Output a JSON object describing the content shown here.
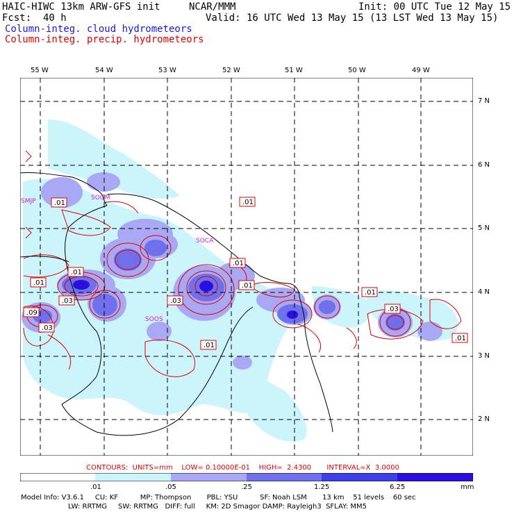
{
  "header": {
    "model": "HAIC-HIWC 13km ARW-GFS init",
    "org": "NCAR/MMM",
    "init": "Init: 00 UTC Tue 12 May 15",
    "fcst_label": "Fcst:",
    "fcst_value": "40 h",
    "valid": "Valid: 16 UTC Wed 13 May 15 (13 LST Wed 13 May 15)",
    "line_cloud": "Column-integ. cloud hydrometeors",
    "line_precip": "Column-integ. precip. hydrometeors"
  },
  "map": {
    "longitude_labels": [
      "55 W",
      "54 W",
      "53 W",
      "52 W",
      "51 W",
      "50 W",
      "49 W"
    ],
    "latitude_labels": [
      "7 N",
      "6 N",
      "5 N",
      "4 N",
      "3 N",
      "2 N"
    ],
    "station_labels": [
      "SMJP",
      "SOGM",
      "SOCA",
      "SOOS"
    ],
    "contour_labels": [
      ".01",
      ".01",
      ".01",
      ".01",
      ".03",
      ".03",
      ".01",
      ".01",
      ".01",
      ".03",
      ".01",
      ".09",
      ".03",
      ".01"
    ],
    "colors": {
      "cloud_light": "#ccf5fb",
      "cloud_mid": "#a8a8f4",
      "cloud_dark": "#7070ec",
      "cloud_max": "#2a10e0",
      "precip_contour": "#e00000",
      "coastline": "#000000"
    }
  },
  "legend": {
    "contours_text": "CONTOURS:  UNITS=mm    LOW= 0.10000E-01    HIGH=  2.4300       INTERVAL=X  3.0000",
    "colorbar_ticks": [
      ".01",
      ".05",
      ".25",
      "1.25",
      "6.25",
      "mm"
    ],
    "colorbar_colors": [
      "#ffffff",
      "#ccf5fb",
      "#a8a8f4",
      "#7070ec",
      "#4040e8",
      "#2a10e0"
    ]
  },
  "model_info": {
    "line1": "Model Info: V3.6.1     CU: KF          MP: Thompson       PBL: YSU          SF: Noah LSM       13 km    51 levels    60 sec",
    "line2": "LW: RRTMG     SW: RRTMG   DIFF: full     KM: 2D Smagor DAMP: Rayleigh3  SFLAY: MM5"
  }
}
